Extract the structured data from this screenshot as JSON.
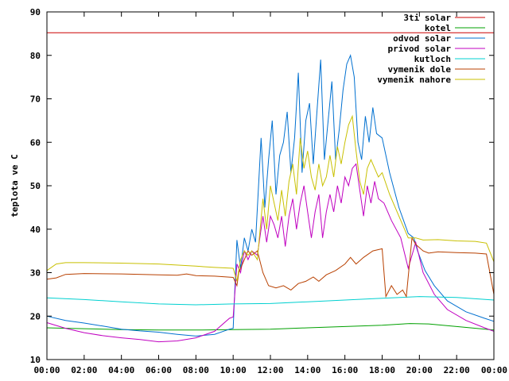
{
  "chart_data": {
    "type": "line",
    "title": "",
    "xlabel": "",
    "ylabel": "teplota ve C",
    "xlim": [
      0,
      24
    ],
    "ylim": [
      10,
      90
    ],
    "grid": false,
    "legend_placement": "top-right",
    "x_ticks": [
      "00:00",
      "02:00",
      "04:00",
      "06:00",
      "08:00",
      "10:00",
      "12:00",
      "14:00",
      "16:00",
      "18:00",
      "20:00",
      "22:00",
      "00:00"
    ],
    "y_ticks": [
      "10",
      "20",
      "30",
      "40",
      "50",
      "60",
      "70",
      "80",
      "90"
    ],
    "series": [
      {
        "name": "3ti solar",
        "color": "#cc0000",
        "points": [
          [
            0,
            85.2
          ],
          [
            24,
            85.2
          ]
        ]
      },
      {
        "name": "kotel",
        "color": "#00a000",
        "points": [
          [
            0,
            17.3
          ],
          [
            2,
            17.1
          ],
          [
            4,
            16.9
          ],
          [
            6,
            16.8
          ],
          [
            8,
            16.8
          ],
          [
            10,
            16.9
          ],
          [
            12,
            17.0
          ],
          [
            14,
            17.3
          ],
          [
            16,
            17.6
          ],
          [
            18,
            17.9
          ],
          [
            19.5,
            18.3
          ],
          [
            20.5,
            18.2
          ],
          [
            22,
            17.6
          ],
          [
            24,
            16.8
          ]
        ]
      },
      {
        "name": "odvod solar",
        "color": "#0070d0",
        "points": [
          [
            0,
            20.0
          ],
          [
            1,
            19.0
          ],
          [
            2,
            18.4
          ],
          [
            3,
            17.7
          ],
          [
            4,
            17.0
          ],
          [
            5,
            16.6
          ],
          [
            6,
            16.3
          ],
          [
            7,
            15.8
          ],
          [
            8,
            15.4
          ],
          [
            9,
            15.8
          ],
          [
            9.8,
            17.0
          ],
          [
            10.0,
            17.2
          ],
          [
            10.2,
            37.5
          ],
          [
            10.4,
            31.0
          ],
          [
            10.6,
            38.0
          ],
          [
            10.8,
            35.0
          ],
          [
            11.0,
            40.0
          ],
          [
            11.2,
            37.0
          ],
          [
            11.5,
            61.0
          ],
          [
            11.7,
            45.0
          ],
          [
            11.9,
            56.0
          ],
          [
            12.1,
            65.0
          ],
          [
            12.3,
            48.0
          ],
          [
            12.5,
            57.0
          ],
          [
            12.7,
            60.0
          ],
          [
            12.9,
            67.0
          ],
          [
            13.1,
            53.0
          ],
          [
            13.3,
            61.0
          ],
          [
            13.5,
            76.0
          ],
          [
            13.7,
            53.0
          ],
          [
            13.9,
            65.0
          ],
          [
            14.1,
            69.0
          ],
          [
            14.3,
            55.0
          ],
          [
            14.5,
            67.0
          ],
          [
            14.7,
            79.0
          ],
          [
            14.9,
            56.0
          ],
          [
            15.1,
            65.0
          ],
          [
            15.3,
            74.0
          ],
          [
            15.5,
            56.0
          ],
          [
            15.7,
            63.0
          ],
          [
            15.9,
            72.0
          ],
          [
            16.1,
            78.0
          ],
          [
            16.3,
            80.0
          ],
          [
            16.5,
            75.0
          ],
          [
            16.7,
            60.0
          ],
          [
            16.9,
            56.0
          ],
          [
            17.1,
            66.0
          ],
          [
            17.3,
            60.0
          ],
          [
            17.5,
            68.0
          ],
          [
            17.7,
            62.0
          ],
          [
            18.0,
            61.0
          ],
          [
            18.4,
            53.0
          ],
          [
            18.9,
            45.0
          ],
          [
            19.4,
            39.0
          ],
          [
            19.7,
            38.0
          ],
          [
            19.9,
            35.0
          ],
          [
            20.3,
            30.5
          ],
          [
            20.8,
            27.0
          ],
          [
            21.5,
            23.5
          ],
          [
            22.5,
            21.0
          ],
          [
            23.5,
            19.5
          ],
          [
            24,
            18.8
          ]
        ]
      },
      {
        "name": "privod solar",
        "color": "#c000c0",
        "points": [
          [
            0,
            18.5
          ],
          [
            1,
            17.2
          ],
          [
            2,
            16.2
          ],
          [
            3,
            15.5
          ],
          [
            4,
            15.0
          ],
          [
            5,
            14.6
          ],
          [
            6,
            14.1
          ],
          [
            7,
            14.3
          ],
          [
            8,
            15.0
          ],
          [
            9,
            16.5
          ],
          [
            9.8,
            19.5
          ],
          [
            10.0,
            19.8
          ],
          [
            10.2,
            32.0
          ],
          [
            10.4,
            30.0
          ],
          [
            10.6,
            35.0
          ],
          [
            10.8,
            33.0
          ],
          [
            11.0,
            35.0
          ],
          [
            11.3,
            34.0
          ],
          [
            11.6,
            43.0
          ],
          [
            11.8,
            37.0
          ],
          [
            12.0,
            43.0
          ],
          [
            12.2,
            41.0
          ],
          [
            12.4,
            38.0
          ],
          [
            12.6,
            43.0
          ],
          [
            12.8,
            36.0
          ],
          [
            13.0,
            43.0
          ],
          [
            13.2,
            47.0
          ],
          [
            13.4,
            40.0
          ],
          [
            13.6,
            46.0
          ],
          [
            13.8,
            50.0
          ],
          [
            14.0,
            44.0
          ],
          [
            14.2,
            38.0
          ],
          [
            14.4,
            44.0
          ],
          [
            14.6,
            48.0
          ],
          [
            14.8,
            38.0
          ],
          [
            15.0,
            44.0
          ],
          [
            15.2,
            48.0
          ],
          [
            15.4,
            44.0
          ],
          [
            15.6,
            50.0
          ],
          [
            15.8,
            46.0
          ],
          [
            16.0,
            52.0
          ],
          [
            16.2,
            50.0
          ],
          [
            16.4,
            54.0
          ],
          [
            16.6,
            55.0
          ],
          [
            16.8,
            49.0
          ],
          [
            17.0,
            43.0
          ],
          [
            17.2,
            50.0
          ],
          [
            17.4,
            46.0
          ],
          [
            17.6,
            51.0
          ],
          [
            17.8,
            47.0
          ],
          [
            18.1,
            46.0
          ],
          [
            18.5,
            42.0
          ],
          [
            19.0,
            38.0
          ],
          [
            19.4,
            31.0
          ],
          [
            19.8,
            37.0
          ],
          [
            20.2,
            30.0
          ],
          [
            20.8,
            25.0
          ],
          [
            21.5,
            21.5
          ],
          [
            22.5,
            19.0
          ],
          [
            23.5,
            17.3
          ],
          [
            24,
            16.5
          ]
        ]
      },
      {
        "name": "kutloch",
        "color": "#00d0d0",
        "points": [
          [
            0,
            24.2
          ],
          [
            2,
            23.8
          ],
          [
            4,
            23.3
          ],
          [
            6,
            22.8
          ],
          [
            8,
            22.6
          ],
          [
            10,
            22.8
          ],
          [
            12,
            22.9
          ],
          [
            14,
            23.3
          ],
          [
            16,
            23.7
          ],
          [
            18,
            24.1
          ],
          [
            20,
            24.5
          ],
          [
            22,
            24.3
          ],
          [
            24,
            23.7
          ]
        ]
      },
      {
        "name": "vymenik dole",
        "color": "#b84000",
        "points": [
          [
            0,
            28.5
          ],
          [
            0.5,
            28.8
          ],
          [
            1,
            29.6
          ],
          [
            2,
            29.8
          ],
          [
            4,
            29.7
          ],
          [
            6,
            29.5
          ],
          [
            7,
            29.4
          ],
          [
            7.5,
            29.7
          ],
          [
            8,
            29.3
          ],
          [
            9,
            29.2
          ],
          [
            10,
            28.9
          ],
          [
            10.2,
            27.0
          ],
          [
            10.3,
            30.0
          ],
          [
            10.5,
            32.0
          ],
          [
            10.8,
            35.0
          ],
          [
            11.0,
            34.0
          ],
          [
            11.3,
            35.0
          ],
          [
            11.6,
            30.0
          ],
          [
            11.9,
            27.0
          ],
          [
            12.3,
            26.5
          ],
          [
            12.7,
            27.0
          ],
          [
            13.1,
            26.0
          ],
          [
            13.5,
            27.5
          ],
          [
            13.9,
            28.0
          ],
          [
            14.3,
            29.0
          ],
          [
            14.6,
            28.0
          ],
          [
            15.0,
            29.5
          ],
          [
            15.5,
            30.5
          ],
          [
            16.0,
            32.0
          ],
          [
            16.3,
            33.5
          ],
          [
            16.6,
            32.0
          ],
          [
            17.0,
            33.5
          ],
          [
            17.5,
            35.0
          ],
          [
            18.0,
            35.5
          ],
          [
            18.2,
            24.5
          ],
          [
            18.5,
            27.0
          ],
          [
            18.8,
            25.0
          ],
          [
            19.1,
            26.0
          ],
          [
            19.3,
            24.5
          ],
          [
            19.6,
            38.0
          ],
          [
            19.8,
            36.5
          ],
          [
            20.2,
            35.0
          ],
          [
            20.5,
            34.5
          ],
          [
            21.0,
            34.8
          ],
          [
            22.0,
            34.6
          ],
          [
            23.0,
            34.5
          ],
          [
            23.6,
            34.3
          ],
          [
            24,
            25.0
          ]
        ]
      },
      {
        "name": "vymenik nahore",
        "color": "#c8c000",
        "points": [
          [
            0,
            30.5
          ],
          [
            0.5,
            32.0
          ],
          [
            1,
            32.3
          ],
          [
            2,
            32.3
          ],
          [
            4,
            32.2
          ],
          [
            6,
            32.0
          ],
          [
            8,
            31.5
          ],
          [
            9,
            31.2
          ],
          [
            10,
            31.0
          ],
          [
            10.2,
            28.0
          ],
          [
            10.4,
            33.0
          ],
          [
            10.6,
            35.0
          ],
          [
            10.8,
            34.0
          ],
          [
            11.0,
            35.0
          ],
          [
            11.3,
            33.0
          ],
          [
            11.6,
            47.0
          ],
          [
            11.8,
            40.0
          ],
          [
            12.0,
            50.0
          ],
          [
            12.2,
            46.0
          ],
          [
            12.4,
            42.0
          ],
          [
            12.6,
            49.0
          ],
          [
            12.8,
            43.0
          ],
          [
            13.0,
            51.0
          ],
          [
            13.2,
            55.0
          ],
          [
            13.4,
            48.0
          ],
          [
            13.6,
            61.0
          ],
          [
            13.8,
            54.0
          ],
          [
            14.0,
            58.0
          ],
          [
            14.2,
            52.0
          ],
          [
            14.4,
            49.0
          ],
          [
            14.6,
            55.0
          ],
          [
            14.8,
            50.0
          ],
          [
            15.0,
            52.0
          ],
          [
            15.2,
            57.0
          ],
          [
            15.4,
            52.0
          ],
          [
            15.6,
            59.0
          ],
          [
            15.8,
            55.0
          ],
          [
            16.0,
            60.0
          ],
          [
            16.2,
            64.0
          ],
          [
            16.4,
            66.0
          ],
          [
            16.6,
            58.0
          ],
          [
            16.8,
            51.0
          ],
          [
            17.0,
            48.0
          ],
          [
            17.2,
            54.0
          ],
          [
            17.4,
            56.0
          ],
          [
            17.6,
            54.0
          ],
          [
            17.8,
            52.0
          ],
          [
            18.0,
            53.0
          ],
          [
            18.4,
            48.0
          ],
          [
            18.9,
            43.0
          ],
          [
            19.4,
            38.0
          ],
          [
            19.8,
            38.0
          ],
          [
            20.2,
            37.5
          ],
          [
            21.0,
            37.6
          ],
          [
            22.0,
            37.3
          ],
          [
            23.0,
            37.2
          ],
          [
            23.6,
            36.8
          ],
          [
            24,
            32.5
          ]
        ]
      }
    ]
  }
}
